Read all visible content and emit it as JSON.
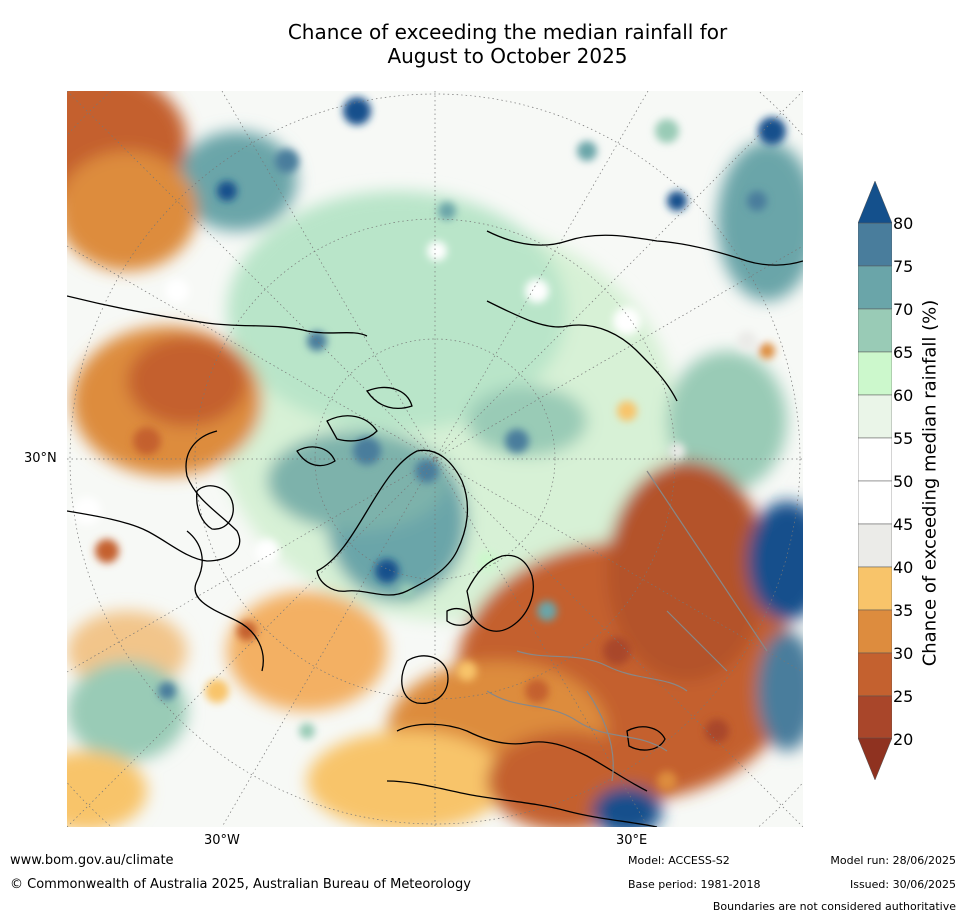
{
  "title_line1": "Chance of exceeding the median rainfall for",
  "title_line2": "August to October 2025",
  "map": {
    "lat_label": "30°N",
    "lon_labels": [
      "30°W",
      "30°E"
    ],
    "colors": {
      "dark_brown": "#a9462a",
      "brown": "#c4612f",
      "orange": "#dd8c3e",
      "light_orange": "#f8c46a",
      "gray": "#ebebe8",
      "white": "#ffffff",
      "very_light_green": "#eaf5e8",
      "light_green": "#ccf8cc",
      "green": "#99cbb6",
      "teal": "#6aa5a9",
      "blue_teal": "#497d9c",
      "dark_blue": "#14508c",
      "coast": "#000000",
      "border": "#888888"
    }
  },
  "colorbar": {
    "ticks": [
      "80",
      "75",
      "70",
      "65",
      "60",
      "55",
      "50",
      "45",
      "40",
      "35",
      "30",
      "25",
      "20"
    ],
    "label": "Chance of exceeding median rainfall (%)",
    "colors": [
      "#14508c",
      "#497d9c",
      "#6aa5a9",
      "#99cbb6",
      "#ccf8cc",
      "#eaf5e8",
      "#ffffff",
      "#ffffff",
      "#ebebe8",
      "#f8c46a",
      "#dd8c3e",
      "#c4612f",
      "#a9462a",
      "#8f3220"
    ]
  },
  "footer": {
    "website": "www.bom.gov.au/climate",
    "copyright": "© Commonwealth of Australia 2025, Australian Bureau of Meteorology",
    "model": "Model: ACCESS-S2",
    "base_period": "Base period: 1981-2018",
    "model_run": "Model run: 28/06/2025",
    "issued": "Issued: 30/06/2025",
    "disclaimer": "Boundaries are not considered authoritative"
  }
}
